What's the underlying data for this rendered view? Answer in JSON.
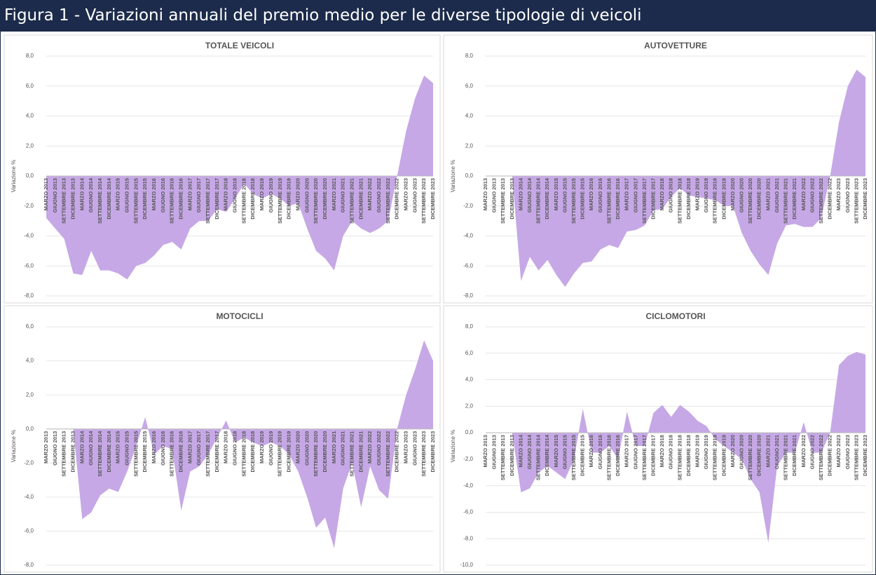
{
  "header": {
    "title": "Figura 1 - Variazioni annuali del premio medio per le diverse tipologie di veicoli"
  },
  "chart_data": [
    {
      "type": "area",
      "title": "TOTALE VEICOLI",
      "ylabel": "Variazione %",
      "color": "#c6a8e6",
      "grid": true,
      "categories": [
        "MARZO 2013",
        "GIUGNO 2013",
        "SETTEMBRE 2013",
        "DICEMBRE 2013",
        "MARZO 2014",
        "GIUGNO 2014",
        "SETTEMBRE 2014",
        "DICEMBRE 2014",
        "MARZO 2015",
        "GIUGNO 2015",
        "SETTEMBRE 2015",
        "DICEMBRE 2015",
        "MARZO 2016",
        "GIUGNO 2016",
        "SETTEMBRE 2016",
        "DICEMBRE 2016",
        "MARZO 2017",
        "GIUGNO 2017",
        "SETTEMBRE 2017",
        "DICEMBRE 2017",
        "MARZO 2018",
        "GIUGNO 2018",
        "SETTEMBRE 2018",
        "DICEMBRE 2018",
        "MARZO 2019",
        "GIUGNO 2019",
        "SETTEMBRE 2019",
        "DICEMBRE 2019",
        "MARZO 2020",
        "GIUGNO 2020",
        "SETTEMBRE 2020",
        "DICEMBRE 2020",
        "MARZO 2021",
        "GIUGNO 2021",
        "SETTEMBRE 2021",
        "DICEMBRE 2021",
        "MARZO 2022",
        "GIUGNO 2022",
        "SETTEMBRE 2022",
        "DICEMBRE 2022",
        "MARZO 2023",
        "GIUGNO 2023",
        "SETTEMBRE 2023",
        "DICEMBRE 2023"
      ],
      "values": [
        -2.8,
        -3.5,
        -4.2,
        -6.5,
        -6.6,
        -5.0,
        -6.3,
        -6.3,
        -6.5,
        -6.9,
        -6.0,
        -5.8,
        -5.3,
        -4.6,
        -4.4,
        -4.9,
        -3.5,
        -3.0,
        -3.0,
        -2.2,
        -2.4,
        -1.5,
        -0.5,
        -1.2,
        -1.5,
        -1.2,
        -1.5,
        -2.0,
        -1.8,
        -3.5,
        -5.0,
        -5.5,
        -6.3,
        -4.0,
        -3.0,
        -3.5,
        -3.8,
        -3.5,
        -3.0,
        0.0,
        3.0,
        5.2,
        6.7,
        6.2
      ],
      "ylim": [
        -8,
        8
      ],
      "yticks": [
        {
          "value": -8,
          "label": "-8,0"
        },
        {
          "value": -6,
          "label": "-6,0"
        },
        {
          "value": -4,
          "label": "-4,0"
        },
        {
          "value": -2,
          "label": "-2,0"
        },
        {
          "value": 0,
          "label": "0,0"
        },
        {
          "value": 2,
          "label": "2,0"
        },
        {
          "value": 4,
          "label": "4,0"
        },
        {
          "value": 6,
          "label": "6,0"
        },
        {
          "value": 8,
          "label": "8,0"
        }
      ]
    },
    {
      "type": "area",
      "title": "AUTOVETTURE",
      "ylabel": "Variazione %",
      "color": "#c6a8e6",
      "grid": true,
      "categories": [
        "MARZO 2013",
        "GIUGNO 2013",
        "SETTEMBRE 2013",
        "DICEMBRE 2013",
        "MARZO 2014",
        "GIUGNO 2014",
        "SETTEMBRE 2014",
        "DICEMBRE 2014",
        "MARZO 2015",
        "GIUGNO 2015",
        "SETTEMBRE 2015",
        "DICEMBRE 2015",
        "MARZO 2016",
        "GIUGNO 2016",
        "SETTEMBRE 2016",
        "DICEMBRE 2016",
        "MARZO 2017",
        "GIUGNO 2017",
        "SETTEMBRE 2017",
        "DICEMBRE 2017",
        "MARZO 2018",
        "GIUGNO 2018",
        "SETTEMBRE 2018",
        "DICEMBRE 2018",
        "MARZO 2019",
        "GIUGNO 2019",
        "SETTEMBRE 2019",
        "DICEMBRE 2019",
        "MARZO 2020",
        "GIUGNO 2020",
        "SETTEMBRE 2020",
        "DICEMBRE 2020",
        "MARZO 2021",
        "GIUGNO 2021",
        "SETTEMBRE 2021",
        "DICEMBRE 2021",
        "MARZO 2022",
        "GIUGNO 2022",
        "SETTEMBRE 2022",
        "DICEMBRE 2022",
        "MARZO 2023",
        "GIUGNO 2023",
        "SETTEMBRE 2023",
        "DICEMBRE 2023"
      ],
      "values": [
        null,
        null,
        null,
        0.0,
        -7.0,
        -5.4,
        -6.3,
        -5.6,
        -6.6,
        -7.4,
        -6.5,
        -5.8,
        -5.7,
        -4.9,
        -4.6,
        -4.8,
        -3.7,
        -3.6,
        -3.3,
        -2.3,
        -2.2,
        -1.4,
        -0.8,
        -1.3,
        -1.4,
        -1.5,
        -1.6,
        -2.0,
        -2.0,
        -3.8,
        -5.0,
        -5.9,
        -6.6,
        -4.5,
        -3.3,
        -3.2,
        -3.4,
        -3.4,
        -2.8,
        0.0,
        3.6,
        6.0,
        7.1,
        6.6
      ],
      "ylim": [
        -8,
        8
      ],
      "yticks": [
        {
          "value": -8,
          "label": "-8,0"
        },
        {
          "value": -6,
          "label": "-6,0"
        },
        {
          "value": -4,
          "label": "-4,0"
        },
        {
          "value": -2,
          "label": "-2,0"
        },
        {
          "value": 0,
          "label": "0,0"
        },
        {
          "value": 2,
          "label": "2,0"
        },
        {
          "value": 4,
          "label": "4,0"
        },
        {
          "value": 6,
          "label": "6,0"
        },
        {
          "value": 8,
          "label": "8,0"
        }
      ]
    },
    {
      "type": "area",
      "title": "MOTOCICLI",
      "ylabel": "Variazione %",
      "color": "#c6a8e6",
      "grid": true,
      "categories": [
        "MARZO 2013",
        "GIUGNO 2013",
        "SETTEMBRE 2013",
        "DICEMBRE 2013",
        "MARZO 2014",
        "GIUGNO 2014",
        "SETTEMBRE 2014",
        "DICEMBRE 2014",
        "MARZO 2015",
        "GIUGNO 2015",
        "SETTEMBRE 2015",
        "DICEMBRE 2015",
        "MARZO 2016",
        "GIUGNO 2016",
        "SETTEMBRE 2016",
        "DICEMBRE 2016",
        "MARZO 2017",
        "GIUGNO 2017",
        "SETTEMBRE 2017",
        "DICEMBRE 2017",
        "MARZO 2018",
        "GIUGNO 2018",
        "SETTEMBRE 2018",
        "DICEMBRE 2018",
        "MARZO 2019",
        "GIUGNO 2019",
        "SETTEMBRE 2019",
        "DICEMBRE 2019",
        "MARZO 2020",
        "GIUGNO 2020",
        "SETTEMBRE 2020",
        "DICEMBRE 2020",
        "MARZO 2021",
        "GIUGNO 2021",
        "SETTEMBRE 2021",
        "DICEMBRE 2021",
        "MARZO 2022",
        "GIUGNO 2022",
        "SETTEMBRE 2022",
        "DICEMBRE 2022",
        "MARZO 2023",
        "GIUGNO 2023",
        "SETTEMBRE 2023",
        "DICEMBRE 2023"
      ],
      "values": [
        null,
        null,
        null,
        0.0,
        -5.3,
        -4.9,
        -3.9,
        -3.5,
        -3.7,
        -2.5,
        -1.0,
        0.7,
        -1.5,
        -1.0,
        -1.2,
        -4.8,
        -2.5,
        -2.2,
        -1.5,
        -0.5,
        0.5,
        -0.8,
        -0.5,
        -0.8,
        -1.0,
        -0.8,
        -1.0,
        -1.5,
        -2.5,
        -4.0,
        -5.8,
        -5.2,
        -7.0,
        -3.5,
        -2.0,
        -4.6,
        -2.2,
        -3.6,
        -4.1,
        0.0,
        2.0,
        3.5,
        5.2,
        4.0
      ],
      "ylim": [
        -8,
        6
      ],
      "yticks": [
        {
          "value": -8,
          "label": "-8,0"
        },
        {
          "value": -6,
          "label": "-6,0"
        },
        {
          "value": -4,
          "label": "-4,0"
        },
        {
          "value": -2,
          "label": "-2,0"
        },
        {
          "value": 0,
          "label": "0,0"
        },
        {
          "value": 2,
          "label": "2,0"
        },
        {
          "value": 4,
          "label": "4,0"
        },
        {
          "value": 6,
          "label": "6,0"
        }
      ]
    },
    {
      "type": "area",
      "title": "CICLOMOTORI",
      "ylabel": "Variazione %",
      "color": "#c6a8e6",
      "grid": true,
      "categories": [
        "MARZO 2013",
        "GIUGNO 2013",
        "SETTEMBRE 2013",
        "DICEMBRE 2013",
        "MARZO 2014",
        "GIUGNO 2014",
        "SETTEMBRE 2014",
        "DICEMBRE 2014",
        "MARZO 2015",
        "GIUGNO 2015",
        "SETTEMBRE 2015",
        "DICEMBRE 2015",
        "MARZO 2016",
        "GIUGNO 2016",
        "SETTEMBRE 2016",
        "DICEMBRE 2016",
        "MARZO 2017",
        "GIUGNO 2017",
        "SETTEMBRE 2017",
        "DICEMBRE 2017",
        "MARZO 2018",
        "GIUGNO 2018",
        "SETTEMBRE 2018",
        "DICEMBRE 2018",
        "MARZO 2019",
        "GIUGNO 2019",
        "SETTEMBRE 2019",
        "DICEMBRE 2019",
        "MARZO 2020",
        "GIUGNO 2020",
        "SETTEMBRE 2020",
        "DICEMBRE 2020",
        "MARZO 2021",
        "GIUGNO 2021",
        "SETTEMBRE 2021",
        "DICEMBRE 2021",
        "MARZO 2022",
        "GIUGNO 2022",
        "SETTEMBRE 2022",
        "DICEMBRE 2022",
        "MARZO 2023",
        "GIUGNO 2023",
        "SETTEMBRE 2023",
        "DICEMBRE 2023"
      ],
      "values": [
        null,
        null,
        null,
        0.0,
        -4.5,
        -4.2,
        -3.0,
        -2.5,
        -3.0,
        -3.5,
        -2.0,
        1.8,
        -1.5,
        -1.5,
        -1.0,
        -2.0,
        1.6,
        -1.0,
        -1.0,
        1.5,
        2.1,
        1.2,
        2.1,
        1.6,
        0.9,
        0.5,
        -0.5,
        -1.0,
        -1.5,
        -2.0,
        -3.5,
        -4.5,
        -8.3,
        -2.5,
        -1.5,
        -1.5,
        0.8,
        -1.5,
        -1.5,
        0.0,
        5.1,
        5.8,
        6.1,
        5.9
      ],
      "ylim": [
        -10,
        8
      ],
      "yticks": [
        {
          "value": -10,
          "label": "-10,0"
        },
        {
          "value": -8,
          "label": "-8,0"
        },
        {
          "value": -6,
          "label": "-6,0"
        },
        {
          "value": -4,
          "label": "-4,0"
        },
        {
          "value": -2,
          "label": "-2,0"
        },
        {
          "value": 0,
          "label": "0,0"
        },
        {
          "value": 2,
          "label": "2,0"
        },
        {
          "value": 4,
          "label": "4,0"
        },
        {
          "value": 6,
          "label": "6,0"
        },
        {
          "value": 8,
          "label": "8,0"
        }
      ]
    }
  ]
}
